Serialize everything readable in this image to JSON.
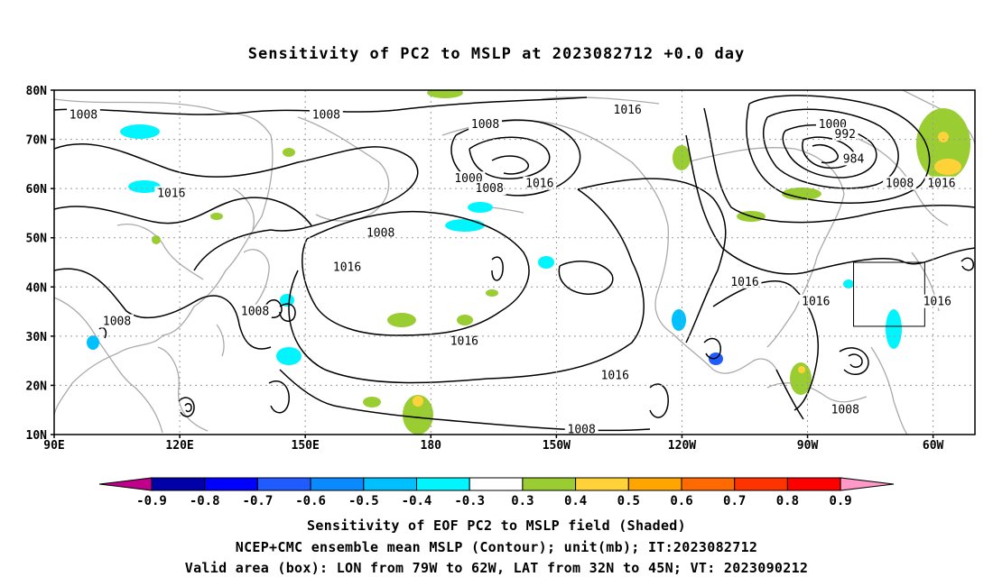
{
  "title": "Sensitivity of PC2 to MSLP at 2023082712 +0.0 day",
  "lat_labels": [
    "80N",
    "70N",
    "60N",
    "50N",
    "40N",
    "30N",
    "20N",
    "10N"
  ],
  "lon_labels": [
    "90E",
    "120E",
    "150E",
    "180",
    "150W",
    "120W",
    "90W",
    "60W"
  ],
  "contour_labels": [
    {
      "text": "1008",
      "lon": 97,
      "lat": 75
    },
    {
      "text": "1008",
      "lon": 155,
      "lat": 75
    },
    {
      "text": "1016",
      "lon": 118,
      "lat": 59
    },
    {
      "text": "1008",
      "lon": 193,
      "lat": 73
    },
    {
      "text": "1016",
      "lon": 227,
      "lat": 76
    },
    {
      "text": "1000",
      "lon": 189,
      "lat": 62
    },
    {
      "text": "1008",
      "lon": 194,
      "lat": 60
    },
    {
      "text": "1016",
      "lon": 206,
      "lat": 61
    },
    {
      "text": "1008",
      "lon": 168,
      "lat": 51
    },
    {
      "text": "1016",
      "lon": 160,
      "lat": 44
    },
    {
      "text": "1000",
      "lon": 276,
      "lat": 73
    },
    {
      "text": "992",
      "lon": 279,
      "lat": 71
    },
    {
      "text": "984",
      "lon": 281,
      "lat": 66
    },
    {
      "text": "1008",
      "lon": 292,
      "lat": 61
    },
    {
      "text": "1016",
      "lon": 302,
      "lat": 61
    },
    {
      "text": "1016",
      "lon": 255,
      "lat": 41
    },
    {
      "text": "1016",
      "lon": 272,
      "lat": 37
    },
    {
      "text": "1016",
      "lon": 301,
      "lat": 37
    },
    {
      "text": "1008",
      "lon": 105,
      "lat": 33
    },
    {
      "text": "1008",
      "lon": 138,
      "lat": 35
    },
    {
      "text": "1016",
      "lon": 188,
      "lat": 29
    },
    {
      "text": "1016",
      "lon": 224,
      "lat": 22
    },
    {
      "text": "1008",
      "lon": 216,
      "lat": 11
    },
    {
      "text": "1008",
      "lon": 279,
      "lat": 15
    }
  ],
  "colorbar": {
    "labels": [
      "-0.9",
      "-0.8",
      "-0.7",
      "-0.6",
      "-0.5",
      "-0.4",
      "-0.3",
      "0.3",
      "0.4",
      "0.5",
      "0.6",
      "0.7",
      "0.8",
      "0.9"
    ],
    "colors": [
      "#0000a8",
      "#0000ff",
      "#1f5bff",
      "#0a8aff",
      "#00c0ff",
      "#00f5ff",
      "#ffffff",
      "#9acd32",
      "#ffd23a",
      "#ffa500",
      "#ff6a00",
      "#ff3300",
      "#ff0000"
    ],
    "low_end_color": "#c0008a",
    "high_end_color": "#ff9ac8"
  },
  "valid_box": {
    "lon_min": 281,
    "lon_max": 298,
    "lat_min": 32,
    "lat_max": 45
  },
  "footer": {
    "line1": "Sensitivity of EOF PC2 to MSLP field (Shaded)",
    "line2": "NCEP+CMC ensemble mean MSLP (Contour); unit(mb); IT:2023082712",
    "line3": "Valid area (box): LON from 79W to 62W, LAT from 32N to 45N; VT: 2023090212"
  }
}
